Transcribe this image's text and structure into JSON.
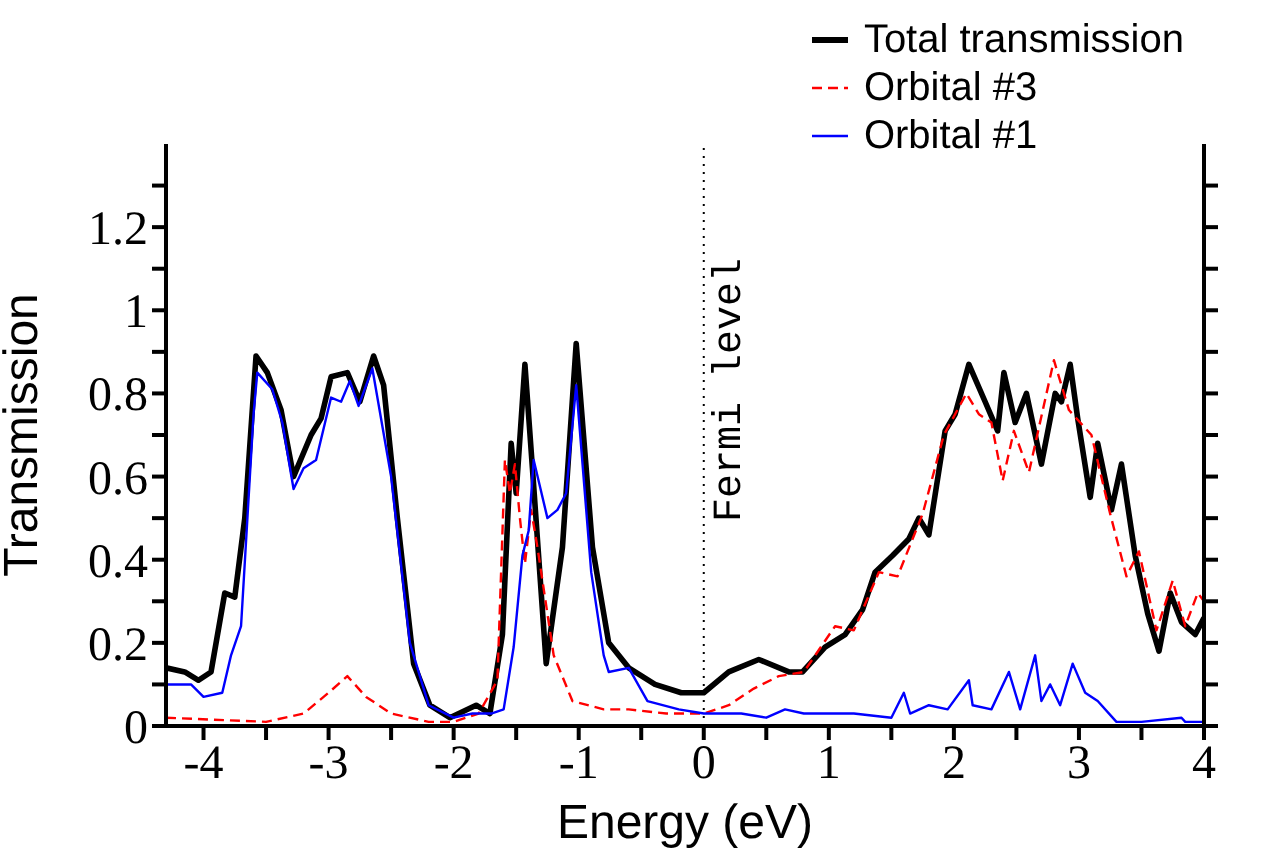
{
  "chart_data": {
    "type": "line",
    "xlabel": "Energy (eV)",
    "ylabel": "Transmission",
    "xlim": [
      -4.3,
      4
    ],
    "ylim": [
      0,
      1.4
    ],
    "xticks": [
      -4,
      {
        "value": -3.5,
        "label": null
      },
      -3,
      {
        "value": -2.5,
        "label": null
      },
      -2,
      {
        "value": -1.5,
        "label": null
      },
      -1,
      {
        "value": -0.5,
        "label": null
      },
      0,
      {
        "value": 0.5,
        "label": null
      },
      1,
      {
        "value": 1.5,
        "label": null
      },
      2,
      {
        "value": 2.5,
        "label": null
      },
      3,
      {
        "value": 3.5,
        "label": null
      },
      4
    ],
    "yticks": [
      0,
      {
        "value": 0.1,
        "label": null
      },
      0.2,
      {
        "value": 0.3,
        "label": null
      },
      0.4,
      {
        "value": 0.5,
        "label": null
      },
      0.6,
      {
        "value": 0.7,
        "label": null
      },
      0.8,
      {
        "value": 0.9,
        "label": null
      },
      1,
      {
        "value": 1.1,
        "label": null
      },
      1.2,
      {
        "value": 1.3,
        "label": null
      }
    ],
    "grid": false,
    "legend": "top right",
    "marker": "none",
    "ref_lines": [
      {
        "axis": "x",
        "value": 0,
        "label": "Fermi level",
        "color": "#000000",
        "line_style": "dotted"
      }
    ],
    "series": [
      {
        "name": "Total transmission",
        "color": "#000000",
        "line_style": "solid",
        "x": [
          -4.3,
          -4.15,
          -4.04,
          -3.94,
          -3.83,
          -3.75,
          -3.67,
          -3.58,
          -3.49,
          -3.38,
          -3.28,
          -3.14,
          -3.06,
          -2.98,
          -2.85,
          -2.75,
          -2.64,
          -2.56,
          -2.45,
          -2.32,
          -2.19,
          -2.03,
          -1.82,
          -1.71,
          -1.61,
          -1.54,
          -1.5,
          -1.43,
          -1.37,
          -1.26,
          -1.13,
          -1.02,
          -0.89,
          -0.76,
          -0.6,
          -0.39,
          -0.18,
          0,
          0.2,
          0.44,
          0.68,
          0.79,
          0.97,
          1.13,
          1.27,
          1.37,
          1.51,
          1.64,
          1.72,
          1.8,
          1.93,
          2.01,
          2.12,
          2.25,
          2.35,
          2.4,
          2.49,
          2.58,
          2.7,
          2.81,
          2.86,
          2.93,
          2.99,
          3.09,
          3.15,
          3.26,
          3.34,
          3.45,
          3.55,
          3.64,
          3.73,
          3.82,
          3.93,
          4
        ],
        "values": [
          0.14,
          0.13,
          0.11,
          0.13,
          0.32,
          0.31,
          0.5,
          0.89,
          0.85,
          0.76,
          0.6,
          0.7,
          0.74,
          0.84,
          0.85,
          0.78,
          0.89,
          0.82,
          0.5,
          0.15,
          0.05,
          0.02,
          0.05,
          0.03,
          0.22,
          0.68,
          0.56,
          0.87,
          0.62,
          0.15,
          0.43,
          0.92,
          0.43,
          0.2,
          0.14,
          0.1,
          0.08,
          0.08,
          0.13,
          0.16,
          0.13,
          0.13,
          0.19,
          0.22,
          0.28,
          0.37,
          0.41,
          0.45,
          0.5,
          0.46,
          0.71,
          0.75,
          0.87,
          0.78,
          0.71,
          0.85,
          0.73,
          0.8,
          0.63,
          0.8,
          0.78,
          0.87,
          0.74,
          0.55,
          0.68,
          0.52,
          0.63,
          0.41,
          0.27,
          0.18,
          0.32,
          0.25,
          0.22,
          0.26
        ]
      },
      {
        "name": "Orbital #3",
        "color": "#ff0000",
        "line_style": "dashed",
        "x": [
          -4.3,
          -3.5,
          -3.2,
          -3,
          -2.85,
          -2.7,
          -2.5,
          -2.2,
          -2,
          -1.8,
          -1.65,
          -1.59,
          -1.55,
          -1.51,
          -1.47,
          -1.43,
          -1.38,
          -1.33,
          -1.2,
          -1.05,
          -0.8,
          -0.6,
          -0.3,
          0,
          0.2,
          0.4,
          0.6,
          0.8,
          1.05,
          1.2,
          1.4,
          1.55,
          1.75,
          1.92,
          2.1,
          2.2,
          2.3,
          2.39,
          2.48,
          2.6,
          2.8,
          2.92,
          3.1,
          3.25,
          3.38,
          3.48,
          3.62,
          3.75,
          3.85,
          3.95,
          4
        ],
        "values": [
          0.02,
          0.01,
          0.03,
          0.08,
          0.12,
          0.07,
          0.03,
          0.01,
          0.01,
          0.03,
          0.11,
          0.64,
          0.56,
          0.63,
          0.5,
          0.39,
          0.52,
          0.43,
          0.17,
          0.06,
          0.04,
          0.04,
          0.03,
          0.03,
          0.05,
          0.09,
          0.12,
          0.13,
          0.24,
          0.23,
          0.37,
          0.36,
          0.51,
          0.7,
          0.8,
          0.75,
          0.73,
          0.59,
          0.71,
          0.61,
          0.88,
          0.76,
          0.7,
          0.51,
          0.36,
          0.42,
          0.23,
          0.35,
          0.24,
          0.32,
          0.3
        ]
      },
      {
        "name": "Orbital #1",
        "color": "#0000ff",
        "line_style": "solid",
        "x": [
          -4.3,
          -4.1,
          -4,
          -3.85,
          -3.78,
          -3.7,
          -3.6,
          -3.57,
          -3.45,
          -3.37,
          -3.28,
          -3.2,
          -3.1,
          -2.98,
          -2.9,
          -2.83,
          -2.76,
          -2.65,
          -2.5,
          -2.35,
          -2.2,
          -2,
          -1.85,
          -1.7,
          -1.6,
          -1.52,
          -1.45,
          -1.4,
          -1.36,
          -1.25,
          -1.17,
          -1.1,
          -1.02,
          -0.9,
          -0.8,
          -0.76,
          -0.6,
          -0.45,
          -0.2,
          0,
          0.3,
          0.5,
          0.65,
          0.8,
          0.9,
          1.2,
          1.5,
          1.6,
          1.65,
          1.8,
          1.95,
          2.12,
          2.15,
          2.3,
          2.44,
          2.53,
          2.65,
          2.7,
          2.77,
          2.85,
          2.95,
          3.05,
          3.15,
          3.3,
          3.5,
          3.82,
          3.85,
          4
        ],
        "values": [
          0.1,
          0.1,
          0.07,
          0.08,
          0.17,
          0.24,
          0.75,
          0.85,
          0.81,
          0.73,
          0.57,
          0.62,
          0.64,
          0.79,
          0.78,
          0.83,
          0.77,
          0.86,
          0.6,
          0.2,
          0.05,
          0.02,
          0.03,
          0.03,
          0.04,
          0.19,
          0.41,
          0.47,
          0.64,
          0.5,
          0.52,
          0.56,
          0.82,
          0.37,
          0.17,
          0.13,
          0.14,
          0.06,
          0.04,
          0.03,
          0.03,
          0.02,
          0.04,
          0.03,
          0.03,
          0.03,
          0.02,
          0.08,
          0.03,
          0.05,
          0.04,
          0.11,
          0.05,
          0.04,
          0.13,
          0.04,
          0.17,
          0.06,
          0.1,
          0.05,
          0.15,
          0.08,
          0.06,
          0.01,
          0.01,
          0.02,
          0.01,
          0.01
        ]
      }
    ]
  }
}
